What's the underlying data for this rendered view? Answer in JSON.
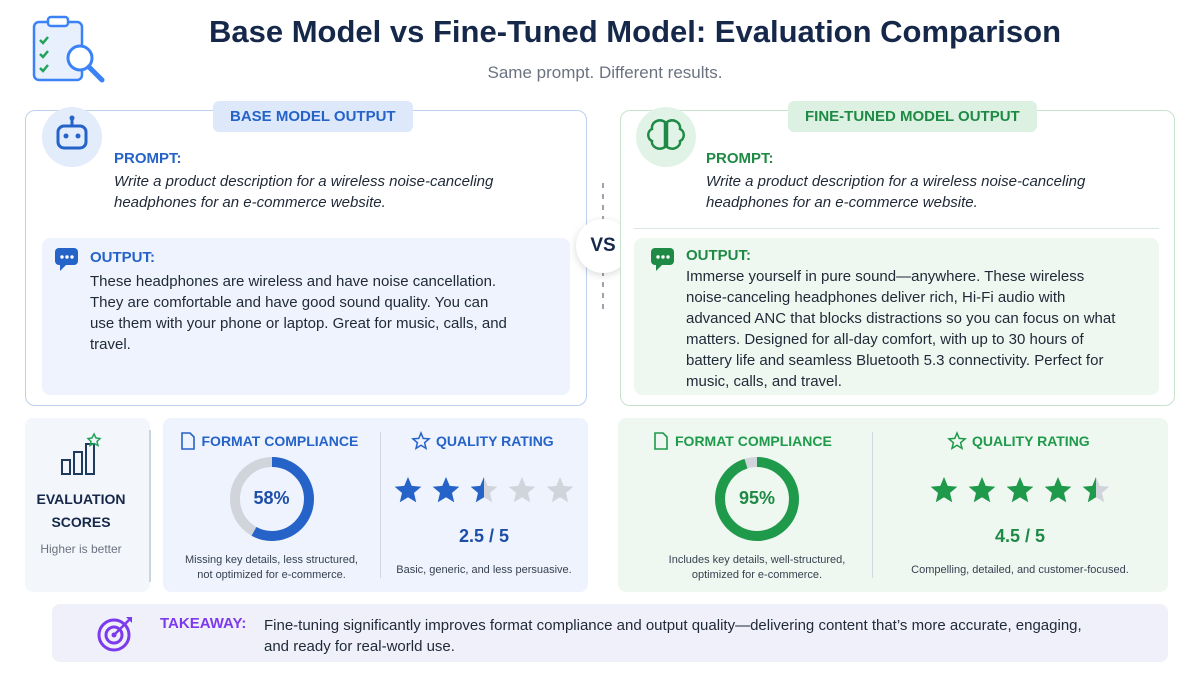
{
  "header": {
    "title": "Base Model vs Fine-Tuned Model: Evaluation Comparison",
    "subtitle": "Same prompt. Different results."
  },
  "vs": "VS",
  "panels": [
    {
      "label": "BASE MODEL OUTPUT",
      "prompt_label": "PROMPT:",
      "prompt": "Write a product description for a wireless noise-canceling headphones for an e-commerce website.",
      "output_label": "OUTPUT:",
      "output": "These headphones are wireless and have noise cancellation. They are comfortable and have good sound quality. You can use them with your phone or laptop. Great for music, calls, and travel."
    },
    {
      "label": "FINE-TUNED MODEL OUTPUT",
      "prompt_label": "PROMPT:",
      "prompt": "Write a product description for a wireless noise-canceling headphones for an e-commerce website.",
      "output_label": "OUTPUT:",
      "output": "Immerse yourself in pure sound—anywhere. These wireless noise-canceling headphones deliver rich, Hi-Fi audio with advanced ANC that blocks distractions so you can focus on what matters. Designed for all-day comfort, with up to 30 hours of battery life and seamless Bluetooth 5.3 connectivity. Perfect for music, calls, and travel."
    }
  ],
  "scores": {
    "title": "EVALUATION SCORES",
    "note": "Higher is better"
  },
  "evaluations": [
    {
      "format_label": "FORMAT COMPLIANCE",
      "format": {
        "value": 58,
        "label": "58%"
      },
      "format_note": "Missing key details, less structured, not optimized for e-commerce.",
      "quality_label": "QUALITY RATING",
      "rating": {
        "value": 2.5,
        "label": "2.5 / 5"
      },
      "rating_max": 5,
      "quality_note": "Basic, generic, and less persuasive."
    },
    {
      "format_label": "FORMAT COMPLIANCE",
      "format": {
        "value": 95,
        "label": "95%"
      },
      "format_note": "Includes key details, well-structured, optimized for e-commerce.",
      "quality_label": "QUALITY RATING",
      "rating": {
        "value": 4.5,
        "label": "4.5 / 5"
      },
      "rating_max": 5,
      "quality_note": "Compelling, detailed, and customer-focused."
    }
  ],
  "takeaway": {
    "label": "TAKEAWAY:",
    "text": "Fine-tuning significantly improves format compliance and output quality—delivering content that’s more accurate, engaging, and ready for real-world use."
  }
}
